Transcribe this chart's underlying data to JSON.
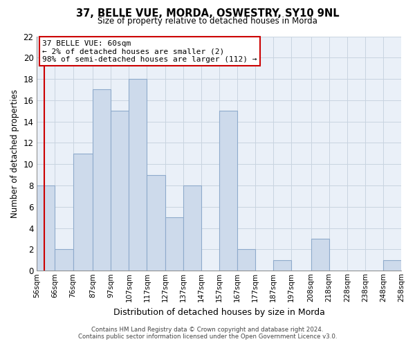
{
  "title": "37, BELLE VUE, MORDA, OSWESTRY, SY10 9NL",
  "subtitle": "Size of property relative to detached houses in Morda",
  "xlabel": "Distribution of detached houses by size in Morda",
  "ylabel": "Number of detached properties",
  "bar_color": "#cddaeb",
  "bar_edge_color": "#8eaacb",
  "annotation_box_color": "#ffffff",
  "annotation_border_color": "#cc0000",
  "annotation_line1": "37 BELLE VUE: 60sqm",
  "annotation_line2": "← 2% of detached houses are smaller (2)",
  "annotation_line3": "98% of semi-detached houses are larger (112) →",
  "marker_line_color": "#cc0000",
  "marker_value": 60,
  "bin_edges": [
    56,
    66,
    76,
    87,
    97,
    107,
    117,
    127,
    137,
    147,
    157,
    167,
    177,
    187,
    197,
    208,
    218,
    228,
    238,
    248,
    258
  ],
  "bin_labels": [
    "56sqm",
    "66sqm",
    "76sqm",
    "87sqm",
    "97sqm",
    "107sqm",
    "117sqm",
    "127sqm",
    "137sqm",
    "147sqm",
    "157sqm",
    "167sqm",
    "177sqm",
    "187sqm",
    "197sqm",
    "208sqm",
    "218sqm",
    "228sqm",
    "238sqm",
    "248sqm",
    "258sqm"
  ],
  "counts": [
    8,
    2,
    11,
    17,
    15,
    18,
    9,
    5,
    8,
    0,
    15,
    2,
    0,
    1,
    0,
    3,
    0,
    0,
    0,
    1
  ],
  "ylim": [
    0,
    22
  ],
  "yticks": [
    0,
    2,
    4,
    6,
    8,
    10,
    12,
    14,
    16,
    18,
    20,
    22
  ],
  "footer_line1": "Contains HM Land Registry data © Crown copyright and database right 2024.",
  "footer_line2": "Contains public sector information licensed under the Open Government Licence v3.0.",
  "background_color": "#ffffff",
  "grid_color": "#c8d4e0",
  "grid_bg_color": "#eaf0f8"
}
